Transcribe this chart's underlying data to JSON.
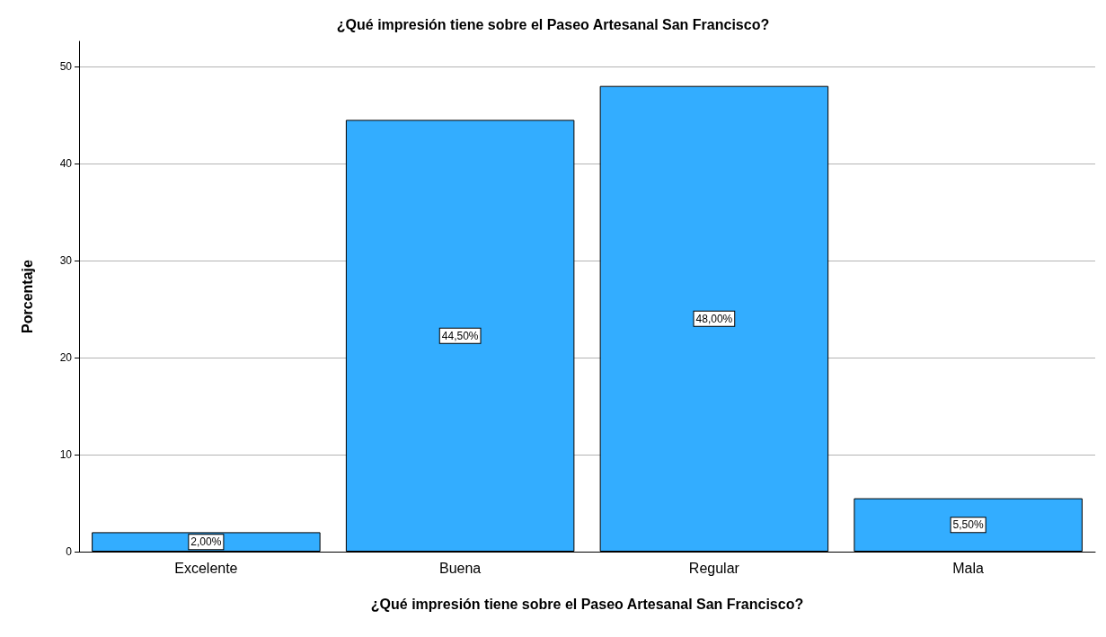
{
  "chart_data": {
    "type": "bar",
    "title": "¿Qué impresión tiene sobre el Paseo Artesanal San Francisco?",
    "xlabel": "¿Qué impresión tiene sobre el Paseo Artesanal San Francisco?",
    "ylabel": "Porcentaje",
    "categories": [
      "Excelente",
      "Buena",
      "Regular",
      "Mala"
    ],
    "values": [
      2.0,
      44.5,
      48.0,
      5.5
    ],
    "value_labels": [
      "2,00%",
      "44,50%",
      "48,00%",
      "5,50%"
    ],
    "color": "#33adff",
    "ylim": [
      0,
      52.6
    ],
    "yticks": [
      0,
      10,
      20,
      30,
      40,
      50
    ],
    "grid": "y"
  }
}
